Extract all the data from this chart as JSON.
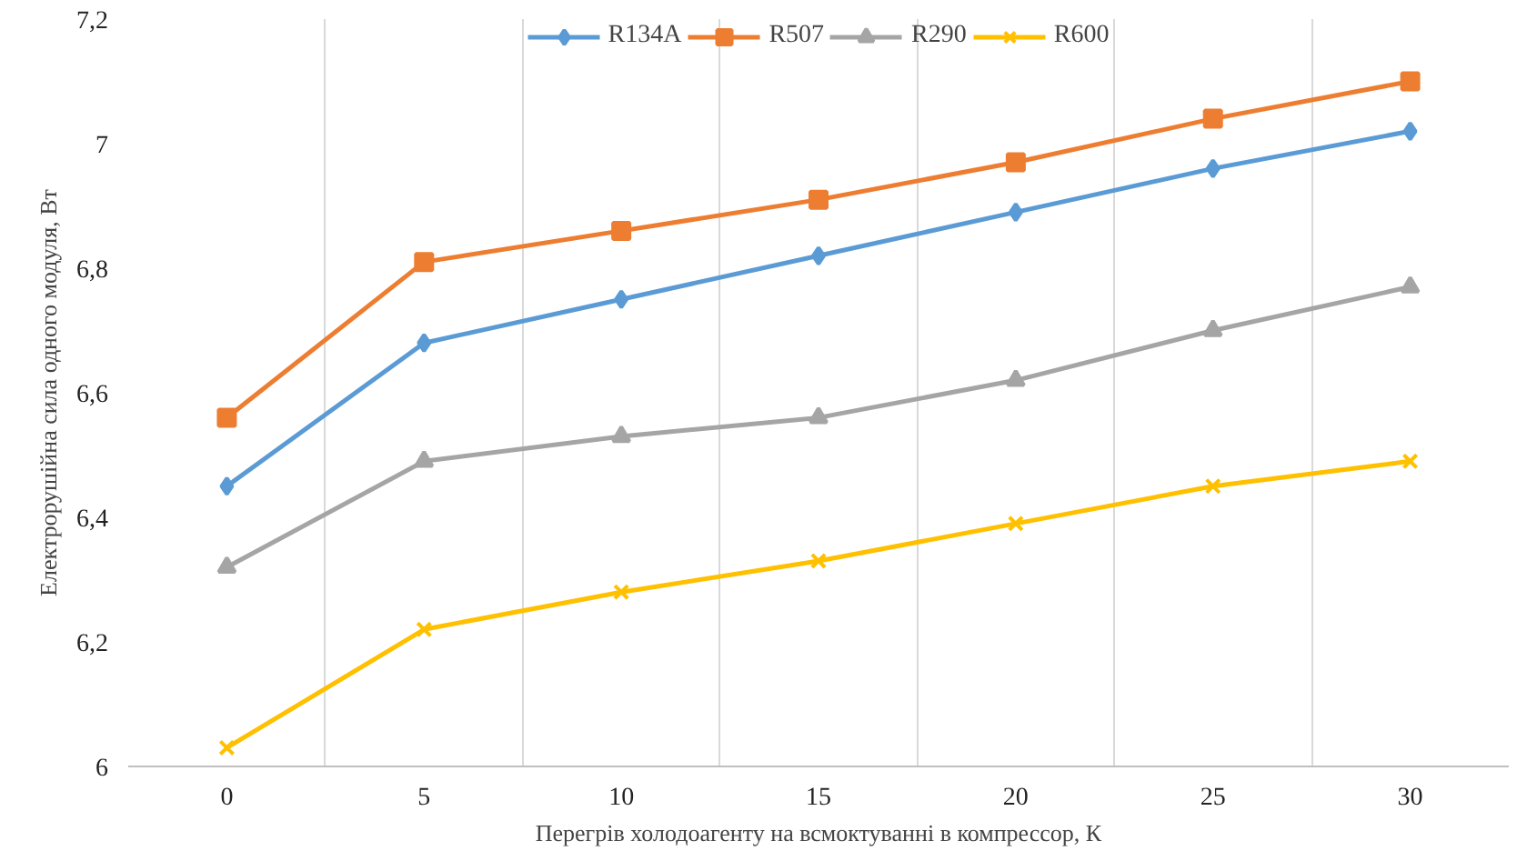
{
  "chart_data": {
    "type": "line",
    "xlabel": "Перегрів холодоагенту на всмоктуванні в компрессор, К",
    "ylabel": "Електрорушійна сила одного модуля, Вт",
    "categories": [
      "0",
      "5",
      "10",
      "15",
      "20",
      "25",
      "30"
    ],
    "series": [
      {
        "name": "R134A",
        "color": "#5b9bd5",
        "marker": "diamond",
        "values": [
          6.45,
          6.68,
          6.75,
          6.82,
          6.89,
          6.96,
          7.02
        ]
      },
      {
        "name": "R507",
        "color": "#ed7d31",
        "marker": "square",
        "values": [
          6.56,
          6.81,
          6.86,
          6.91,
          6.97,
          7.04,
          7.1
        ]
      },
      {
        "name": "R290",
        "color": "#a5a5a5",
        "marker": "triangle",
        "values": [
          6.32,
          6.49,
          6.53,
          6.56,
          6.62,
          6.7,
          6.77
        ]
      },
      {
        "name": "R600",
        "color": "#ffc000",
        "marker": "cross",
        "values": [
          6.03,
          6.22,
          6.28,
          6.33,
          6.39,
          6.45,
          6.49
        ]
      }
    ],
    "ylim": [
      6,
      7.2
    ],
    "yticks": [
      6,
      {
        "value": 6.2,
        "label": "6,2"
      },
      {
        "value": 6.4,
        "label": "6,4"
      },
      {
        "value": 6.6,
        "label": "6,6"
      },
      {
        "value": 6.8,
        "label": "6,8"
      },
      7,
      {
        "value": 7.2,
        "label": "7,2"
      }
    ],
    "grid": "x",
    "legend": "top",
    "line_style": "solid"
  }
}
